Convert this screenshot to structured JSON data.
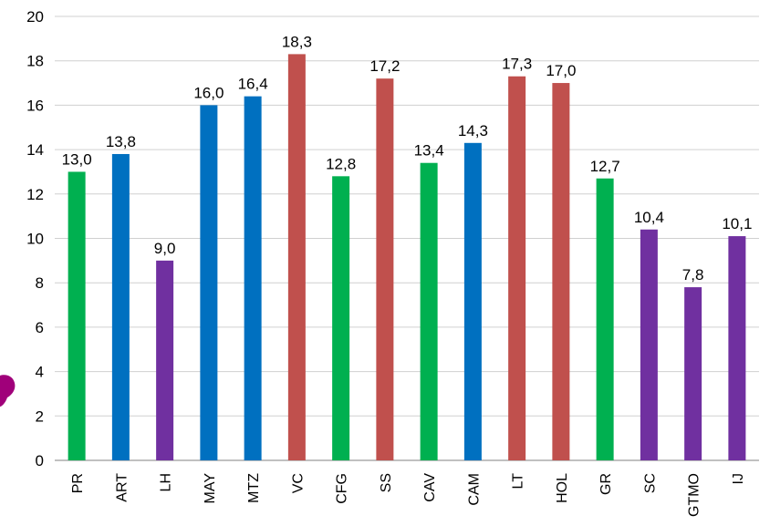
{
  "chart_data": {
    "type": "bar",
    "title": "",
    "xlabel": "",
    "ylabel": "",
    "ylim": [
      0,
      20
    ],
    "yticks": [
      0,
      2,
      4,
      6,
      8,
      10,
      12,
      14,
      16,
      18,
      20
    ],
    "ytick_labels": [
      "0",
      "2",
      "4",
      "6",
      "8",
      "10",
      "12",
      "14",
      "16",
      "18",
      "20"
    ],
    "grid": true,
    "legend": "none",
    "categories": [
      "PR",
      "ART",
      "LH",
      "MAY",
      "MTZ",
      "VC",
      "CFG",
      "SS",
      "CAV",
      "CAM",
      "LT",
      "HOL",
      "GR",
      "SC",
      "GTMO",
      "IJ"
    ],
    "values": [
      13.0,
      13.8,
      9.0,
      16.0,
      16.4,
      18.3,
      12.8,
      17.2,
      13.4,
      14.3,
      17.3,
      17.0,
      12.7,
      10.4,
      7.8,
      10.1
    ],
    "value_labels": [
      "13,0",
      "13,8",
      "9,0",
      "16,0",
      "16,4",
      "18,3",
      "12,8",
      "17,2",
      "13,4",
      "14,3",
      "17,3",
      "17,0",
      "12,7",
      "10,4",
      "7,8",
      "10,1"
    ],
    "bar_colors": [
      "#00b050",
      "#0070c0",
      "#7030a0",
      "#0070c0",
      "#0070c0",
      "#c0504d",
      "#00b050",
      "#c0504d",
      "#00b050",
      "#0070c0",
      "#c0504d",
      "#c0504d",
      "#00b050",
      "#7030a0",
      "#7030a0",
      "#7030a0"
    ]
  },
  "decor": {
    "edge_shape_color": "#a0007a"
  }
}
